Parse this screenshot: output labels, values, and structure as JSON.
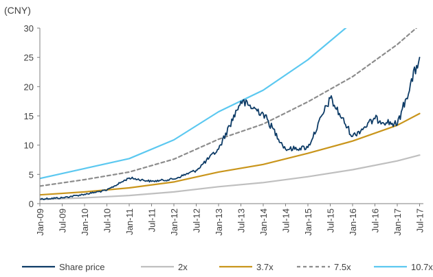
{
  "chart_data": {
    "type": "line",
    "ylabel": "(CNY)",
    "ylim": [
      0,
      30
    ],
    "y_ticks": [
      "0",
      "5",
      "10",
      "15",
      "20",
      "25",
      "30"
    ],
    "x_ticks": [
      "Jan-09",
      "Jul-09",
      "Jan-10",
      "Jul-10",
      "Jan-11",
      "Jul-11",
      "Jan-12",
      "Jul-12",
      "Jan-13",
      "Jul-13",
      "Jan-14",
      "Jul-14",
      "Jan-15",
      "Jul-15",
      "Jan-16",
      "Jul-16",
      "Jan-17",
      "Jul-17"
    ],
    "grid": false,
    "legend_position": "bottom",
    "series": [
      {
        "name": "Share price",
        "color": "#0d3b66",
        "style": "solid",
        "x": [
          "Jan-09",
          "Jul-09",
          "Jan-10",
          "Jul-10",
          "Jan-11",
          "Jul-11",
          "Jan-12",
          "Jul-12",
          "Jan-13",
          "Jul-13",
          "Jan-14",
          "Jul-14",
          "Jan-15",
          "Jul-15",
          "Jan-16",
          "Jul-16",
          "Jan-17",
          "Jul-17"
        ],
        "values": [
          0.8,
          1.0,
          1.6,
          2.3,
          4.4,
          3.8,
          4.2,
          5.7,
          9.3,
          17.5,
          15.4,
          9.3,
          9.6,
          18.0,
          11.5,
          14.5,
          13.5,
          25.0
        ]
      },
      {
        "name": "2x",
        "color": "#bfbfbf",
        "style": "solid",
        "x": [
          "Jan-09",
          "Jan-10",
          "Jan-11",
          "Jan-12",
          "Jan-13",
          "Jan-14",
          "Jan-15",
          "Jan-16",
          "Jan-17",
          "Jul-17"
        ],
        "values": [
          0.7,
          1.0,
          1.4,
          2.0,
          2.9,
          3.6,
          4.6,
          5.8,
          7.3,
          8.3
        ]
      },
      {
        "name": "3.7x",
        "color": "#c9951b",
        "style": "solid",
        "x": [
          "Jan-09",
          "Jan-10",
          "Jan-11",
          "Jan-12",
          "Jan-13",
          "Jan-14",
          "Jan-15",
          "Jan-16",
          "Jan-17",
          "Jul-17"
        ],
        "values": [
          1.5,
          2.0,
          2.7,
          3.7,
          5.4,
          6.7,
          8.6,
          10.7,
          13.4,
          15.4
        ]
      },
      {
        "name": "7.5x",
        "color": "#8c8c8c",
        "style": "dashed",
        "x": [
          "Jan-09",
          "Jan-10",
          "Jan-11",
          "Jan-12",
          "Jan-13",
          "Jan-14",
          "Jan-15",
          "Jan-16",
          "Jan-17",
          "Jul-17"
        ],
        "values": [
          3.0,
          4.1,
          5.4,
          7.6,
          11.0,
          13.6,
          17.4,
          21.7,
          27.2,
          30.5
        ]
      },
      {
        "name": "10.7x",
        "color": "#5bc8f0",
        "style": "solid",
        "x": [
          "Jan-09",
          "Jan-10",
          "Jan-11",
          "Jan-12",
          "Jan-13",
          "Jan-14",
          "Jan-15",
          "Jan-16"
        ],
        "values": [
          4.3,
          6.0,
          7.7,
          10.9,
          15.7,
          19.4,
          24.6,
          31.0
        ]
      }
    ]
  }
}
